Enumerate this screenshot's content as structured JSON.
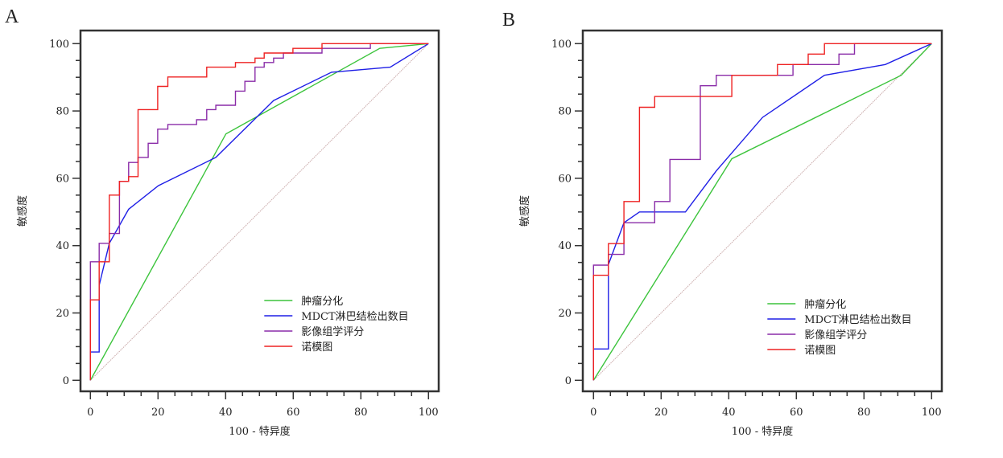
{
  "chart_data": [
    {
      "type": "line",
      "panel_label": "A",
      "xlabel": "100 - 特异度",
      "ylabel": "敏感度",
      "xlim": [
        0,
        100
      ],
      "ylim": [
        0,
        100
      ],
      "xticks": [
        "0",
        "20",
        "40",
        "60",
        "80",
        "100"
      ],
      "yticks": [
        "0",
        "20",
        "40",
        "60",
        "80",
        "100"
      ],
      "grid": false,
      "legend_position": "bottom-right",
      "reference_line": {
        "color": "#c9a9a9",
        "points": [
          [
            0,
            0
          ],
          [
            100,
            100
          ]
        ]
      },
      "series": [
        {
          "name": "肿瘤分化",
          "color": "#3cc43c",
          "points": [
            [
              0,
              0
            ],
            [
              40.1,
              73.2
            ],
            [
              85.6,
              98.6
            ],
            [
              100,
              100
            ]
          ]
        },
        {
          "name": "MDCT淋巴结检出数目",
          "color": "#1f1fe6",
          "points": [
            [
              0,
              0
            ],
            [
              0,
              8.4
            ],
            [
              2.6,
              8.4
            ],
            [
              2.6,
              28.2
            ],
            [
              5.6,
              40.7
            ],
            [
              11.3,
              50.8
            ],
            [
              20.1,
              57.8
            ],
            [
              37.1,
              66.2
            ],
            [
              54.2,
              83.1
            ],
            [
              71.3,
              91.5
            ],
            [
              88.7,
              93
            ],
            [
              100,
              100
            ]
          ]
        },
        {
          "name": "影像组学评分",
          "color": "#8a2ca8",
          "points": [
            [
              0,
              0
            ],
            [
              0,
              35.2
            ],
            [
              2.6,
              35.2
            ],
            [
              2.6,
              40.7
            ],
            [
              5.6,
              40.7
            ],
            [
              5.6,
              43.6
            ],
            [
              8.6,
              43.6
            ],
            [
              8.6,
              59.1
            ],
            [
              11.3,
              59.1
            ],
            [
              11.3,
              64.7
            ],
            [
              14.1,
              64.7
            ],
            [
              14.1,
              66.2
            ],
            [
              17.1,
              66.2
            ],
            [
              17.1,
              70.4
            ],
            [
              19.9,
              70.4
            ],
            [
              19.9,
              74.6
            ],
            [
              22.9,
              74.6
            ],
            [
              22.9,
              76
            ],
            [
              31.4,
              76
            ],
            [
              31.4,
              77.4
            ],
            [
              34.4,
              77.4
            ],
            [
              34.4,
              80.4
            ],
            [
              37.1,
              80.4
            ],
            [
              37.1,
              81.7
            ],
            [
              42.9,
              81.7
            ],
            [
              42.9,
              85.9
            ],
            [
              45.7,
              85.9
            ],
            [
              45.7,
              88.8
            ],
            [
              48.7,
              88.8
            ],
            [
              48.7,
              93
            ],
            [
              51.4,
              93
            ],
            [
              51.4,
              94.4
            ],
            [
              54.2,
              94.4
            ],
            [
              54.2,
              95.7
            ],
            [
              57.1,
              95.7
            ],
            [
              57.1,
              97.2
            ],
            [
              68.5,
              97.2
            ],
            [
              68.5,
              98.6
            ],
            [
              82.8,
              98.6
            ],
            [
              82.8,
              100
            ],
            [
              100,
              100
            ]
          ]
        },
        {
          "name": "诺模图",
          "color": "#ee2222",
          "points": [
            [
              0,
              0
            ],
            [
              0,
              23.9
            ],
            [
              2.6,
              23.9
            ],
            [
              2.6,
              35.2
            ],
            [
              5.6,
              35.2
            ],
            [
              5.6,
              55
            ],
            [
              8.6,
              55
            ],
            [
              8.6,
              59.1
            ],
            [
              11.3,
              59.1
            ],
            [
              11.3,
              60.5
            ],
            [
              14.1,
              60.5
            ],
            [
              14.1,
              80.4
            ],
            [
              19.9,
              80.4
            ],
            [
              19.9,
              87.3
            ],
            [
              22.9,
              87.3
            ],
            [
              22.9,
              90.1
            ],
            [
              34.4,
              90.1
            ],
            [
              34.4,
              93
            ],
            [
              42.9,
              93
            ],
            [
              42.9,
              94.4
            ],
            [
              48.7,
              94.4
            ],
            [
              48.7,
              95.7
            ],
            [
              51.4,
              95.7
            ],
            [
              51.4,
              97.2
            ],
            [
              59.9,
              97.2
            ],
            [
              59.9,
              98.6
            ],
            [
              68.5,
              98.6
            ],
            [
              68.5,
              100
            ],
            [
              100,
              100
            ]
          ]
        }
      ]
    },
    {
      "type": "line",
      "panel_label": "B",
      "xlabel": "100 - 特异度",
      "ylabel": "敏感度",
      "xlim": [
        0,
        100
      ],
      "ylim": [
        0,
        100
      ],
      "xticks": [
        "0",
        "20",
        "40",
        "60",
        "80",
        "100"
      ],
      "yticks": [
        "0",
        "20",
        "40",
        "60",
        "80",
        "100"
      ],
      "grid": false,
      "legend_position": "bottom-right",
      "reference_line": {
        "color": "#c9a9a9",
        "points": [
          [
            0,
            0
          ],
          [
            100,
            100
          ]
        ]
      },
      "series": [
        {
          "name": "肿瘤分化",
          "color": "#3cc43c",
          "points": [
            [
              0,
              0
            ],
            [
              40.9,
              65.8
            ],
            [
              91,
              90.6
            ],
            [
              100,
              100
            ]
          ]
        },
        {
          "name": "MDCT淋巴结检出数目",
          "color": "#1f1fe6",
          "points": [
            [
              0,
              0
            ],
            [
              0,
              9.3
            ],
            [
              4.4,
              9.3
            ],
            [
              4.4,
              34.4
            ],
            [
              9,
              46.8
            ],
            [
              13.6,
              50
            ],
            [
              27.2,
              50
            ],
            [
              36.3,
              62.2
            ],
            [
              50,
              78.1
            ],
            [
              68.3,
              90.6
            ],
            [
              86.3,
              93.8
            ],
            [
              100,
              100
            ]
          ]
        },
        {
          "name": "影像组学评分",
          "color": "#8a2ca8",
          "points": [
            [
              0,
              0
            ],
            [
              0,
              34.2
            ],
            [
              4.4,
              34.2
            ],
            [
              4.4,
              37.4
            ],
            [
              9,
              37.4
            ],
            [
              9,
              46.8
            ],
            [
              18.1,
              46.8
            ],
            [
              18.1,
              53.1
            ],
            [
              22.6,
              53.1
            ],
            [
              22.6,
              65.6
            ],
            [
              31.6,
              65.6
            ],
            [
              31.6,
              87.5
            ],
            [
              36.3,
              87.5
            ],
            [
              36.3,
              90.6
            ],
            [
              59,
              90.6
            ],
            [
              59,
              93.8
            ],
            [
              72.6,
              93.8
            ],
            [
              72.6,
              96.9
            ],
            [
              77.2,
              96.9
            ],
            [
              77.2,
              100
            ],
            [
              100,
              100
            ]
          ]
        },
        {
          "name": "诺模图",
          "color": "#ee2222",
          "points": [
            [
              0,
              0
            ],
            [
              0,
              31.2
            ],
            [
              4.4,
              31.2
            ],
            [
              4.4,
              40.6
            ],
            [
              9,
              40.6
            ],
            [
              9,
              53.1
            ],
            [
              13.6,
              53.1
            ],
            [
              13.6,
              81.1
            ],
            [
              18.1,
              81.1
            ],
            [
              18.1,
              84.3
            ],
            [
              40.9,
              84.3
            ],
            [
              40.9,
              90.6
            ],
            [
              54.4,
              90.6
            ],
            [
              54.4,
              93.8
            ],
            [
              63.5,
              93.8
            ],
            [
              63.5,
              96.9
            ],
            [
              68.3,
              96.9
            ],
            [
              68.3,
              100
            ],
            [
              100,
              100
            ]
          ]
        }
      ]
    }
  ]
}
